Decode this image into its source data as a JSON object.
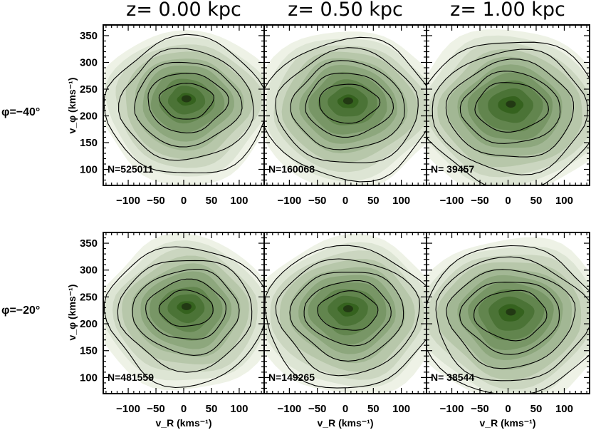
{
  "chart_data": {
    "type": "contour",
    "column_titles": [
      "z=  0.00  kpc",
      "z=  0.50  kpc",
      "z=  1.00  kpc"
    ],
    "row_labels": [
      "φ=−40°",
      "φ=−20°"
    ],
    "xlabel": "v_R (kms⁻¹)",
    "ylabel": "v_φ (kms⁻¹)",
    "xlim": [
      -145,
      145
    ],
    "ylim": [
      70,
      370
    ],
    "x_ticks": [
      -100,
      -50,
      0,
      50,
      100
    ],
    "x_tick_labels": [
      "−100",
      "−50",
      "0",
      "50",
      "100"
    ],
    "y_ticks": [
      100,
      150,
      200,
      250,
      300,
      350
    ],
    "y_tick_labels": [
      "100",
      "150",
      "200",
      "250",
      "300",
      "350"
    ],
    "panels": [
      {
        "row": 0,
        "col": 0,
        "label": "N=525011",
        "peak_vR": 5,
        "peak_vphi": 232,
        "contour_widths_kms": [
          45,
          67,
          89,
          112,
          135
        ],
        "contour_heights_kms": [
          35,
          58,
          82,
          108,
          135
        ]
      },
      {
        "row": 0,
        "col": 1,
        "label": "N=160068",
        "peak_vR": 5,
        "peak_vphi": 228,
        "contour_widths_kms": [
          50,
          72,
          94,
          118,
          142
        ],
        "contour_heights_kms": [
          38,
          62,
          86,
          112,
          138
        ]
      },
      {
        "row": 0,
        "col": 2,
        "label": "N=  39457",
        "peak_vR": 5,
        "peak_vphi": 222,
        "contour_widths_kms": [
          60,
          82,
          105,
          128,
          150
        ],
        "contour_heights_kms": [
          48,
          70,
          95,
          120,
          145
        ]
      },
      {
        "row": 1,
        "col": 0,
        "label": "N=481559",
        "peak_vR": 5,
        "peak_vphi": 232,
        "contour_widths_kms": [
          45,
          67,
          89,
          112,
          135
        ],
        "contour_heights_kms": [
          35,
          58,
          82,
          108,
          135
        ]
      },
      {
        "row": 1,
        "col": 1,
        "label": "N=149265",
        "peak_vR": 5,
        "peak_vphi": 228,
        "contour_widths_kms": [
          50,
          72,
          94,
          118,
          142
        ],
        "contour_heights_kms": [
          38,
          62,
          86,
          112,
          138
        ]
      },
      {
        "row": 1,
        "col": 2,
        "label": "N=  38544",
        "peak_vR": 5,
        "peak_vphi": 222,
        "contour_widths_kms": [
          60,
          82,
          105,
          128,
          150
        ],
        "contour_heights_kms": [
          48,
          70,
          95,
          120,
          145
        ]
      }
    ],
    "colors": {
      "fill_outer": "#eef2e6",
      "fill_inner": "#35621e",
      "peak": "#1f3312",
      "contour": "#000000"
    }
  }
}
